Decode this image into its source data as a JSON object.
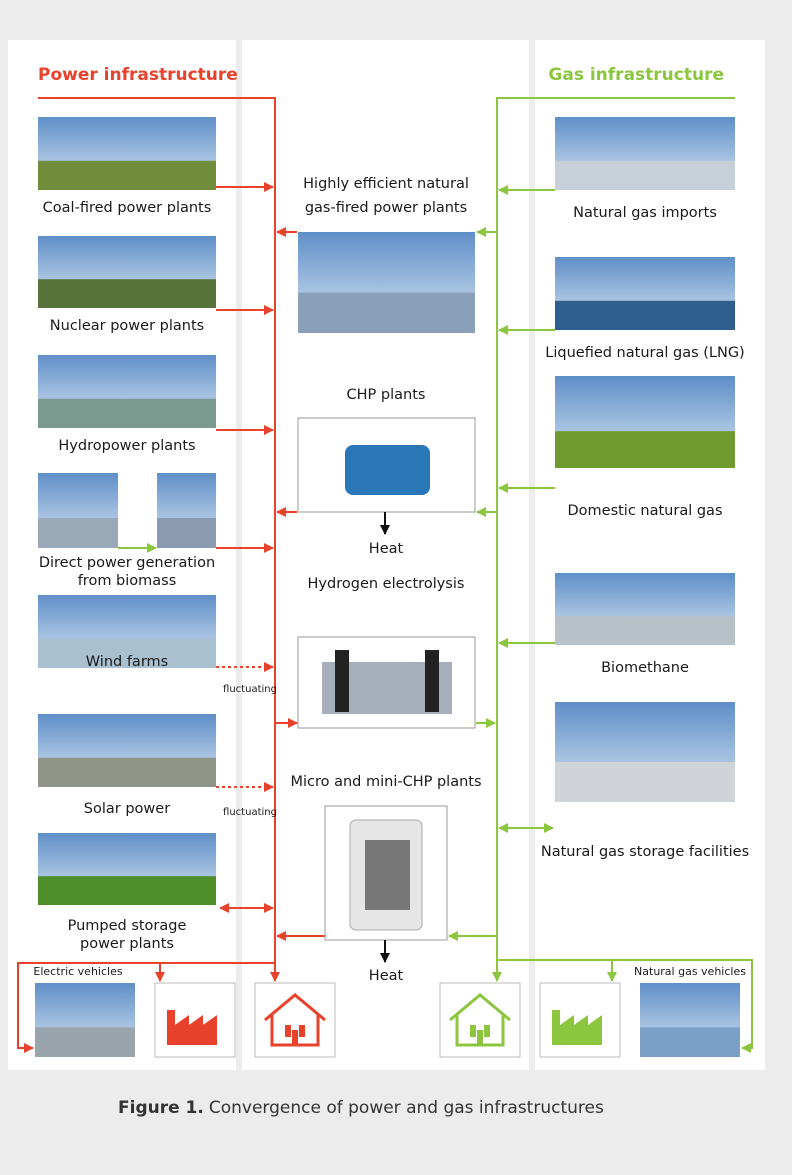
{
  "header": {
    "power": "Power infrastructure",
    "gas": "Gas infrastructure"
  },
  "left": [
    {
      "label": [
        "Coal-fired power plants"
      ]
    },
    {
      "label": [
        "Nuclear power plants"
      ]
    },
    {
      "label": [
        "Hydropower plants"
      ]
    },
    {
      "label": [
        "Direct power generation",
        "from biomass"
      ]
    },
    {
      "label": [
        "Wind farms"
      ],
      "note": "fluctuating"
    },
    {
      "label": [
        "Solar power"
      ],
      "note": "fluctuating"
    },
    {
      "label": [
        "Pumped storage",
        "power plants"
      ]
    }
  ],
  "center": [
    {
      "label": [
        "Highly efficient natural",
        "gas-fired power plants"
      ]
    },
    {
      "label": [
        "CHP plants"
      ],
      "output": "Heat"
    },
    {
      "label": [
        "Hydrogen electrolysis"
      ]
    },
    {
      "label": [
        "Micro and mini-CHP plants"
      ],
      "output": "Heat"
    }
  ],
  "right": [
    {
      "label": [
        "Natural gas imports"
      ]
    },
    {
      "label": [
        "Liquefied natural gas (LNG)"
      ]
    },
    {
      "label": [
        "Domestic natural gas"
      ]
    },
    {
      "label": [
        "Biomethane"
      ]
    },
    {
      "label": [
        "Natural gas storage facilities"
      ]
    }
  ],
  "bottom": {
    "power": "Electric vehicles",
    "gas": "Natural gas vehicles"
  },
  "caption": {
    "number": "Figure 1.",
    "text": "Convergence of power and gas infrastructures"
  }
}
